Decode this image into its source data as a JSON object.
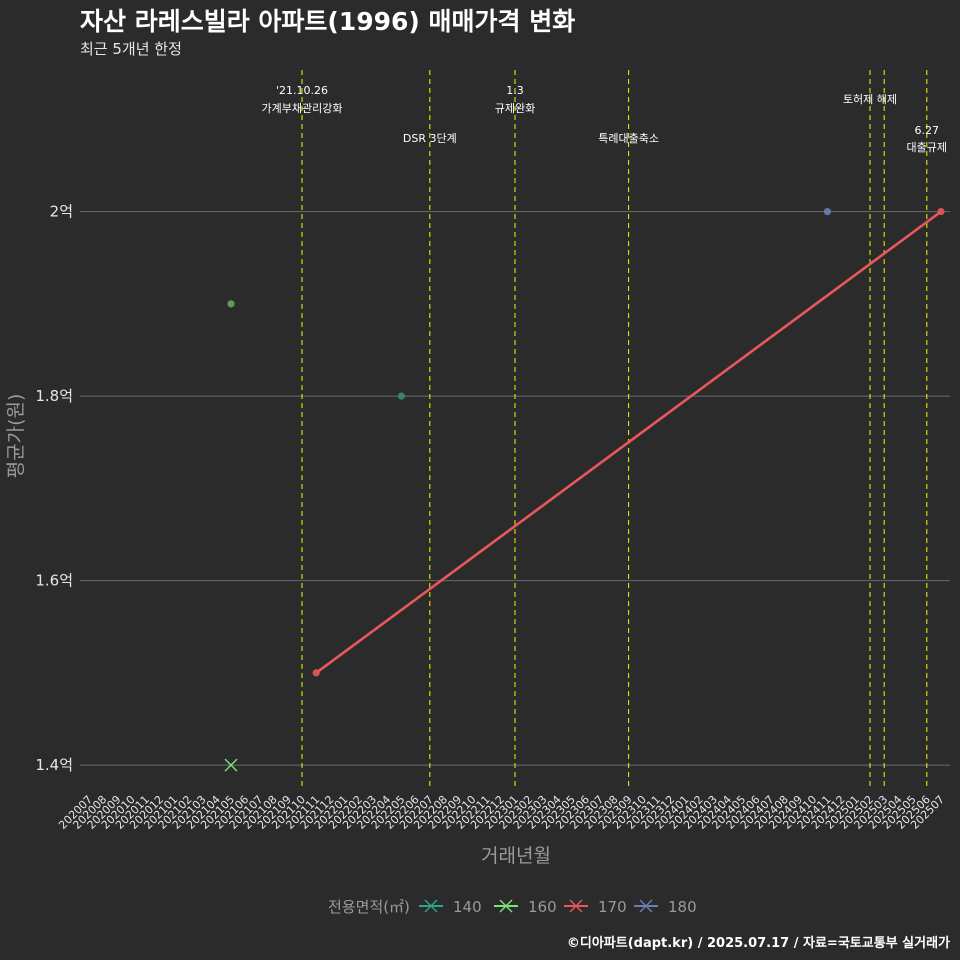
{
  "chart_data": {
    "type": "line",
    "title": "자산 라레스빌라 아파트(1996) 매매가격 변화",
    "subtitle": "최근 5개년 한정",
    "xlabel": "거래년월",
    "ylabel": "평균가(원)",
    "categories": [
      "202007",
      "202008",
      "202009",
      "202010",
      "202011",
      "202012",
      "202101",
      "202102",
      "202103",
      "202104",
      "202105",
      "202106",
      "202107",
      "202108",
      "202109",
      "202110",
      "202111",
      "202112",
      "202201",
      "202202",
      "202203",
      "202204",
      "202205",
      "202206",
      "202207",
      "202208",
      "202209",
      "202210",
      "202211",
      "202212",
      "202301",
      "202302",
      "202303",
      "202304",
      "202305",
      "202306",
      "202307",
      "202308",
      "202309",
      "202310",
      "202311",
      "202312",
      "202401",
      "202402",
      "202403",
      "202404",
      "202405",
      "202406",
      "202407",
      "202408",
      "202409",
      "202410",
      "202411",
      "202412",
      "202501",
      "202502",
      "202503",
      "202504",
      "202505",
      "202506",
      "202507"
    ],
    "yticks": [
      {
        "value": 1.4,
        "label": "1.4억"
      },
      {
        "value": 1.6,
        "label": "1.6억"
      },
      {
        "value": 1.8,
        "label": "1.8억"
      },
      {
        "value": 2.0,
        "label": "2억"
      }
    ],
    "ylim": [
      1.373,
      2.16
    ],
    "series": [
      {
        "name": "140",
        "color": "#2ca58d",
        "points": [
          {
            "x": "202105",
            "y": 1.9
          },
          {
            "x": "202205",
            "y": 1.8
          }
        ]
      },
      {
        "name": "160",
        "color": "#7be37b",
        "points": [
          {
            "x": "202105",
            "y": 1.4
          }
        ]
      },
      {
        "name": "170",
        "color": "#e8585a",
        "points": [
          {
            "x": "202111",
            "y": 1.5
          },
          {
            "x": "202507",
            "y": 2.0
          }
        ]
      },
      {
        "name": "180",
        "color": "#6b7fb3",
        "points": [
          {
            "x": "202411",
            "y": 2.0
          }
        ]
      }
    ],
    "events": [
      {
        "x": "202110",
        "label1": "'21.10.26",
        "label2": "가계부채관리강화",
        "row": 0
      },
      {
        "x": "202207",
        "label1": "DSR 3단계",
        "label2": "",
        "row": 2
      },
      {
        "x": "202301",
        "label1": "1.3",
        "label2": "규제완화",
        "row": 0
      },
      {
        "x": "202309",
        "label1": "특례대출축소",
        "label2": "",
        "row": 2
      },
      {
        "x": "202502",
        "label1": "토허제 해제",
        "label2": "",
        "row": 1
      },
      {
        "x": "202503",
        "label1": "",
        "label2": "",
        "row": 1
      },
      {
        "x": "202506",
        "label1": "6.27",
        "label2": "대출규제",
        "row": 3
      }
    ],
    "legend": {
      "title": "전용면적(㎡)",
      "entries": [
        "140",
        "160",
        "170",
        "180"
      ],
      "position": "bottom"
    },
    "grid": true
  },
  "footer": {
    "credit": "©디아파트(dapt.kr) / 2025.07.17 / 자료=국토교통부 실거래가"
  },
  "colors": {
    "background": "#2b2b2b",
    "grid": "#6a6a6a",
    "event_line": "#e5e500"
  }
}
